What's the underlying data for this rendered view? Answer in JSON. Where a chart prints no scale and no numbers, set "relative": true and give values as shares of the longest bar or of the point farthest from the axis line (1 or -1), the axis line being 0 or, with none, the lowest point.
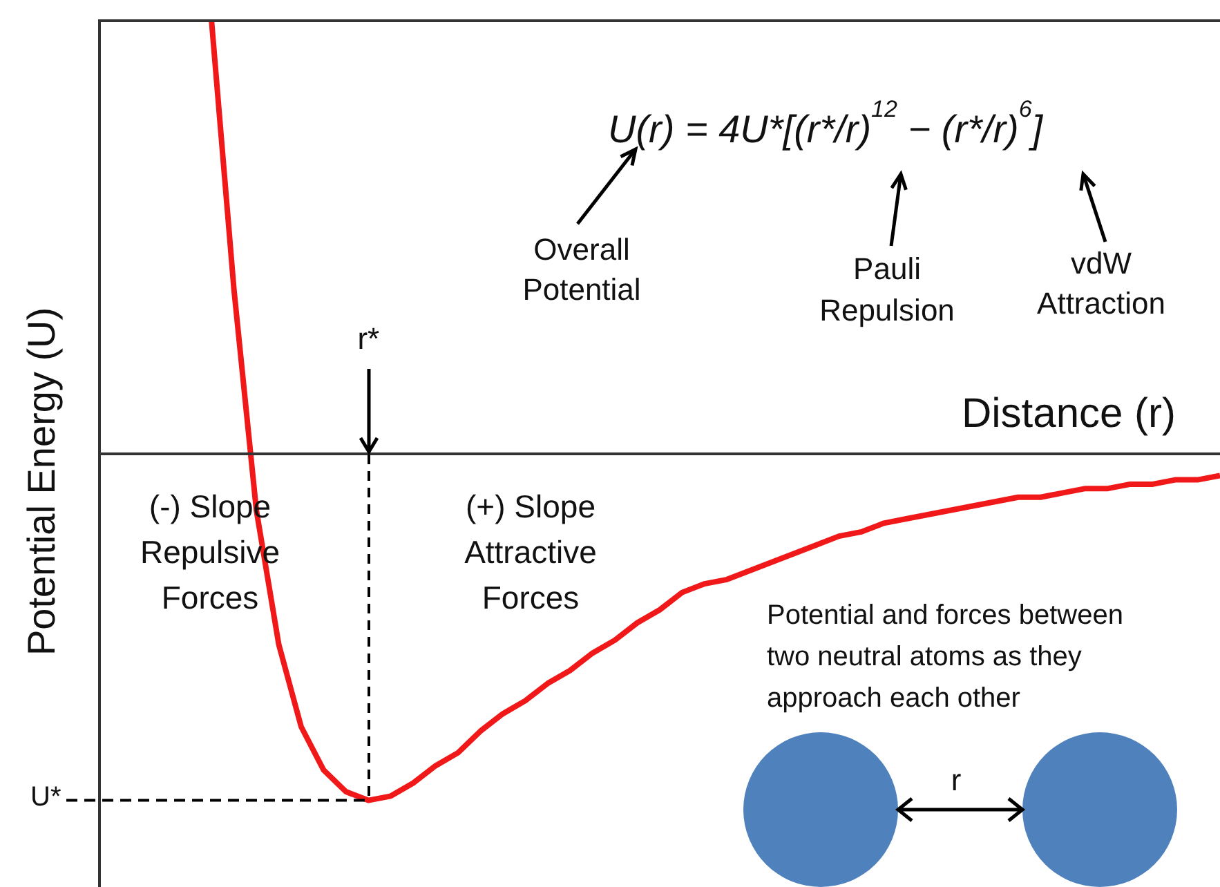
{
  "chart_data": {
    "type": "line",
    "relative": true,
    "xlabel": "Distance (r)",
    "ylabel": "Potential Energy (U)",
    "categories": [
      null,
      null,
      null,
      null,
      null,
      null,
      null,
      null,
      null,
      null,
      null,
      null,
      null,
      null,
      null,
      null,
      null,
      null,
      null,
      null,
      null,
      null,
      null,
      null,
      null,
      null,
      null,
      null,
      null,
      null,
      null,
      null,
      null,
      null,
      null,
      null,
      null,
      null,
      null,
      null,
      null,
      null,
      null,
      null,
      null,
      null,
      null,
      null,
      null,
      null,
      null
    ],
    "series": [
      {
        "color": "#f01818",
        "values": [
          null,
          null,
          null,
          null,
          null,
          1.0,
          0.38,
          -0.13,
          -0.44,
          -0.63,
          -0.73,
          -0.78,
          -0.8,
          -0.79,
          -0.76,
          -0.72,
          -0.69,
          -0.64,
          -0.6,
          -0.57,
          -0.53,
          -0.5,
          -0.46,
          -0.43,
          -0.39,
          -0.36,
          -0.32,
          -0.3,
          -0.29,
          -0.27,
          -0.25,
          -0.23,
          -0.21,
          -0.19,
          -0.18,
          -0.16,
          -0.15,
          -0.14,
          -0.13,
          -0.12,
          -0.11,
          -0.1,
          -0.1,
          -0.09,
          -0.08,
          -0.08,
          -0.07,
          -0.07,
          -0.06,
          -0.06,
          -0.05
        ]
      }
    ],
    "annotations": [
      "U(r) = 4U*[(r*/r)$^{12}$ − (r*/r)$^{6}$]",
      "Overall\nPotential",
      "Pauli\nRepulsion",
      "vdW\nAttraction",
      "(-) Slope\nRepulsive\nForces",
      "(+) Slope\nAttractive\nForces",
      "Potential and forces between\ntwo neutral atoms as they\napproach each other",
      "r",
      "r*"
    ],
    "ref_lines": [
      {
        "axis": "y",
        "value": -0.8,
        "label": "U*",
        "line_style": "dashed",
        "color": "#000000"
      }
    ]
  }
}
